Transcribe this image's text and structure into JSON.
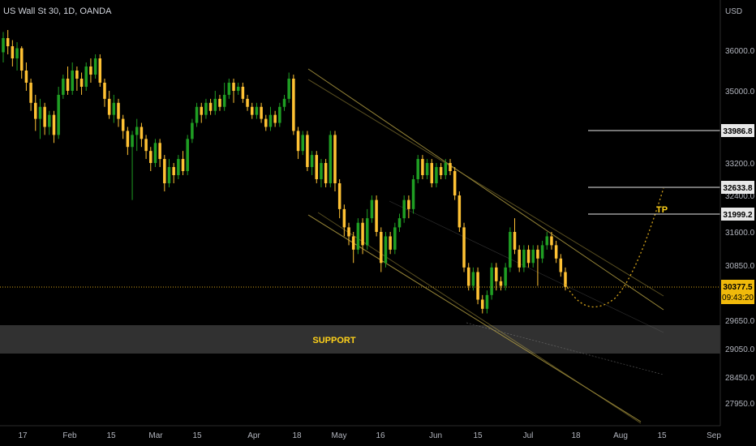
{
  "chart_data": {
    "type": "candlestick",
    "title": "US Wall St 30, 1D, OANDA",
    "currency": "USD",
    "colors": {
      "up": "#1f9e23",
      "down": "#ffc234",
      "annotation": "#ffd21a",
      "line": "#e8e8e8"
    },
    "y_ticks": [
      "36000.0",
      "35000.0",
      "33200.0",
      "32400.0",
      "31600.0",
      "30850.0",
      "29650.0",
      "29050.0",
      "28450.0",
      "27950.0"
    ],
    "x_ticks": [
      "17",
      "Feb",
      "15",
      "Mar",
      "15",
      "Apr",
      "18",
      "May",
      "16",
      "Jun",
      "15",
      "Jul",
      "18",
      "Aug",
      "15",
      "Sep"
    ],
    "current_price": {
      "value": "30377.5",
      "countdown": "09:43:20"
    },
    "levels": [
      {
        "label": "33986.8"
      },
      {
        "label": "32633.8"
      },
      {
        "label": "31999.2"
      }
    ],
    "support_zone": {
      "label": "SUPPORT",
      "top": 29760,
      "bottom": 29150
    },
    "tp_label": "TP",
    "candles": [
      [
        35950,
        36300,
        36450,
        35700
      ],
      [
        36300,
        36100,
        36500,
        35900
      ],
      [
        36100,
        35800,
        36250,
        35600
      ],
      [
        35800,
        36050,
        36200,
        35500
      ],
      [
        36050,
        35500,
        36100,
        35300
      ],
      [
        35500,
        35200,
        35700,
        35000
      ],
      [
        35200,
        34700,
        35300,
        34500
      ],
      [
        34700,
        34300,
        34900,
        34000
      ],
      [
        34300,
        34600,
        34800,
        33800
      ],
      [
        34600,
        34100,
        34700,
        33900
      ],
      [
        34100,
        34400,
        34500,
        33900
      ],
      [
        34400,
        33900,
        34500,
        33700
      ],
      [
        33900,
        34900,
        35100,
        33800
      ],
      [
        34900,
        35300,
        35400,
        34800
      ],
      [
        35300,
        35000,
        35600,
        34900
      ],
      [
        35000,
        35500,
        35700,
        34900
      ],
      [
        35500,
        35300,
        35600,
        35000
      ],
      [
        35300,
        35100,
        35450,
        34900
      ],
      [
        35100,
        35600,
        35700,
        35000
      ],
      [
        35600,
        35400,
        35800,
        35200
      ],
      [
        35400,
        35800,
        35900,
        35300
      ],
      [
        35800,
        35200,
        35900,
        35100
      ],
      [
        35200,
        34800,
        35300,
        34600
      ],
      [
        34800,
        34400,
        35000,
        34300
      ],
      [
        34400,
        34700,
        34900,
        34200
      ],
      [
        34700,
        34300,
        34800,
        34100
      ],
      [
        34300,
        34000,
        34400,
        33800
      ],
      [
        34000,
        33600,
        34100,
        33400
      ],
      [
        33600,
        33900,
        34000,
        32300
      ],
      [
        33900,
        34100,
        34300,
        33500
      ],
      [
        34100,
        33800,
        34200,
        33600
      ],
      [
        33800,
        33500,
        33900,
        33300
      ],
      [
        33500,
        33200,
        33600,
        33000
      ],
      [
        33200,
        33700,
        33800,
        33100
      ],
      [
        33700,
        33300,
        33800,
        33100
      ],
      [
        33300,
        32700,
        33400,
        32500
      ],
      [
        32700,
        33100,
        33300,
        32600
      ],
      [
        33100,
        32900,
        33200,
        32700
      ],
      [
        32900,
        33300,
        33400,
        32800
      ],
      [
        33300,
        33000,
        33500,
        32900
      ],
      [
        33000,
        33800,
        33900,
        32900
      ],
      [
        33800,
        34200,
        34300,
        33700
      ],
      [
        34200,
        34600,
        34700,
        34100
      ],
      [
        34600,
        34400,
        34700,
        34200
      ],
      [
        34400,
        34700,
        34800,
        34300
      ],
      [
        34700,
        34500,
        34800,
        34400
      ],
      [
        34500,
        34800,
        35000,
        34400
      ],
      [
        34800,
        34600,
        34900,
        34500
      ],
      [
        34600,
        34900,
        35200,
        34500
      ],
      [
        34900,
        35200,
        35300,
        34800
      ],
      [
        35200,
        35000,
        35300,
        34700
      ],
      [
        35000,
        35100,
        35200,
        34900
      ],
      [
        35100,
        34800,
        35200,
        34700
      ],
      [
        34800,
        34600,
        34900,
        34500
      ],
      [
        34600,
        34400,
        34700,
        34300
      ],
      [
        34400,
        34600,
        34700,
        34300
      ],
      [
        34600,
        34300,
        34700,
        34200
      ],
      [
        34300,
        34100,
        34400,
        34000
      ],
      [
        34100,
        34400,
        34600,
        34000
      ],
      [
        34400,
        34200,
        34500,
        34100
      ],
      [
        34200,
        34600,
        34700,
        34100
      ],
      [
        34600,
        34800,
        34900,
        34500
      ],
      [
        34800,
        35300,
        35450,
        34700
      ],
      [
        35300,
        34000,
        35400,
        33900
      ],
      [
        34000,
        33500,
        34100,
        33300
      ],
      [
        33500,
        33900,
        34000,
        33400
      ],
      [
        33900,
        33100,
        34000,
        33000
      ],
      [
        33100,
        33400,
        33500,
        32900
      ],
      [
        33400,
        32800,
        33500,
        32700
      ],
      [
        32800,
        33200,
        33300,
        32600
      ],
      [
        33200,
        32700,
        33300,
        32600
      ],
      [
        32700,
        33900,
        34000,
        32600
      ],
      [
        33900,
        32700,
        34000,
        32500
      ],
      [
        32700,
        32100,
        32800,
        31900
      ],
      [
        32100,
        31700,
        32200,
        31500
      ],
      [
        31700,
        31500,
        31800,
        31300
      ],
      [
        31500,
        31200,
        31600,
        30900
      ],
      [
        31200,
        31800,
        31900,
        31100
      ],
      [
        31800,
        31300,
        31900,
        31100
      ],
      [
        31300,
        31900,
        32100,
        31200
      ],
      [
        31900,
        32300,
        32400,
        31800
      ],
      [
        32300,
        31600,
        32400,
        31500
      ],
      [
        31600,
        30900,
        31700,
        30700
      ],
      [
        30900,
        31500,
        31600,
        30800
      ],
      [
        31500,
        31200,
        31600,
        31100
      ],
      [
        31200,
        31700,
        31800,
        31100
      ],
      [
        31700,
        31900,
        32000,
        31600
      ],
      [
        31900,
        32300,
        32400,
        31800
      ],
      [
        32300,
        32100,
        32400,
        31900
      ],
      [
        32100,
        32800,
        32900,
        32000
      ],
      [
        32800,
        33300,
        33400,
        32700
      ],
      [
        33300,
        32900,
        33400,
        32800
      ],
      [
        32900,
        33200,
        33300,
        32800
      ],
      [
        33200,
        32700,
        33300,
        32600
      ],
      [
        32700,
        33100,
        33200,
        32600
      ],
      [
        33100,
        32900,
        33200,
        32800
      ],
      [
        32900,
        33200,
        33300,
        32800
      ],
      [
        33200,
        33000,
        33300,
        32900
      ],
      [
        33000,
        32400,
        33100,
        32300
      ],
      [
        32400,
        31700,
        32500,
        31600
      ],
      [
        31700,
        30800,
        31800,
        30700
      ],
      [
        30800,
        30400,
        30900,
        30300
      ],
      [
        30400,
        30700,
        30800,
        30300
      ],
      [
        30700,
        30100,
        30800,
        30000
      ],
      [
        30100,
        29900,
        30200,
        29800
      ],
      [
        29900,
        30200,
        30300,
        29800
      ],
      [
        30200,
        30800,
        30900,
        30100
      ],
      [
        30800,
        30500,
        30900,
        30300
      ],
      [
        30500,
        30400,
        30600,
        30300
      ],
      [
        30400,
        30800,
        30900,
        30300
      ],
      [
        30800,
        31600,
        31700,
        30700
      ],
      [
        31600,
        31200,
        31900,
        31100
      ],
      [
        31200,
        30800,
        31300,
        30700
      ],
      [
        30800,
        31200,
        31300,
        30700
      ],
      [
        31200,
        30900,
        31300,
        30800
      ],
      [
        30900,
        31200,
        31300,
        30800
      ],
      [
        31200,
        31000,
        31300,
        30400
      ],
      [
        31000,
        31300,
        31400,
        30900
      ],
      [
        31300,
        31500,
        31600,
        31200
      ],
      [
        31500,
        31300,
        31600,
        31200
      ],
      [
        31300,
        31000,
        31400,
        30900
      ],
      [
        31000,
        30700,
        31100,
        30600
      ],
      [
        30700,
        30377.5,
        30800,
        30300
      ]
    ],
    "y_range": [
      27900,
      36800
    ]
  }
}
